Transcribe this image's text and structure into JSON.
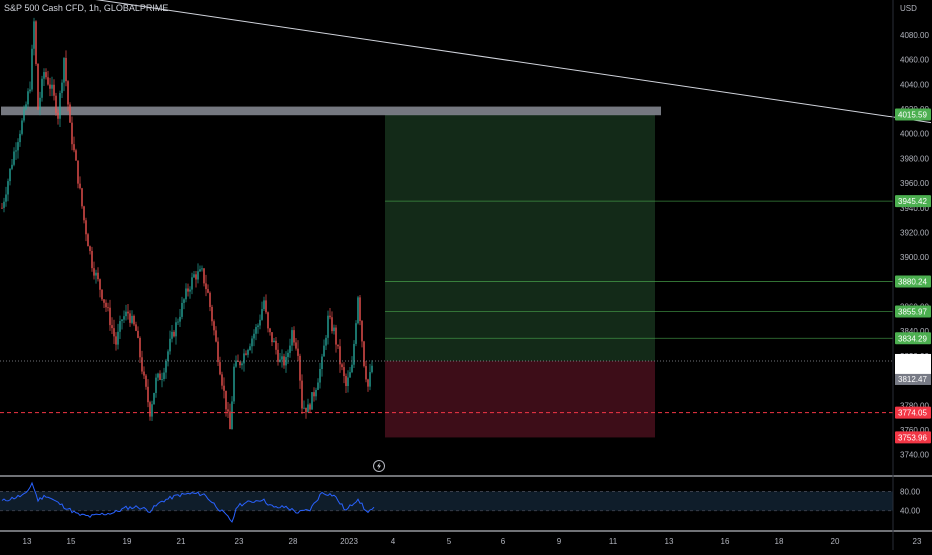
{
  "header": {
    "symbol_line": "S&P 500 Cash CFD, 1h, GLOBALPRIME"
  },
  "price_axis": {
    "currency": "USD",
    "min": 3730,
    "max": 4097,
    "ticks": [
      4080,
      4060,
      4040,
      4020,
      4000,
      3980,
      3960,
      3940,
      3920,
      3900,
      3880,
      3860,
      3840,
      3820,
      3780,
      3760,
      3740
    ],
    "tick_labels": [
      "4080.00",
      "4060.00",
      "4040.00",
      "4020.00",
      "4000.00",
      "3980.00",
      "3960.00",
      "3940.00",
      "3920.00",
      "3900.00",
      "3880.00",
      "3860.00",
      "3840.00",
      "3820.00",
      "3780.00",
      "3760.00",
      "3740.00"
    ]
  },
  "time_axis": {
    "labels": [
      {
        "text": "13",
        "slot": 13
      },
      {
        "text": "15",
        "slot": 35
      },
      {
        "text": "19",
        "slot": 63
      },
      {
        "text": "21",
        "slot": 90
      },
      {
        "text": "23",
        "slot": 119
      },
      {
        "text": "28",
        "slot": 146
      },
      {
        "text": "2023",
        "slot": 174
      },
      {
        "text": "4",
        "slot": 196
      },
      {
        "text": "5",
        "slot": 224
      },
      {
        "text": "6",
        "slot": 251
      },
      {
        "text": "9",
        "slot": 279
      },
      {
        "text": "11",
        "slot": 306
      },
      {
        "text": "13",
        "slot": 334
      },
      {
        "text": "16",
        "slot": 362
      },
      {
        "text": "18",
        "slot": 389
      },
      {
        "text": "20",
        "slot": 417
      },
      {
        "text": "23",
        "slot": 458
      }
    ]
  },
  "chart_data": {
    "type": "candlestick",
    "title": "S&P 500 Cash CFD, 1h, GLOBALPRIME",
    "ylabel": "USD",
    "ylim": [
      3730,
      4097
    ],
    "colors": {
      "up": "#26a69a",
      "down": "#ef5350",
      "rsi": "#2962ff"
    },
    "price_path": [
      {
        "t": 0,
        "p": 3940
      },
      {
        "t": 6,
        "p": 3985
      },
      {
        "t": 11,
        "p": 4015
      },
      {
        "t": 14,
        "p": 4040
      },
      {
        "t": 16,
        "p": 4090
      },
      {
        "t": 18,
        "p": 4020
      },
      {
        "t": 21,
        "p": 4050
      },
      {
        "t": 25,
        "p": 4035
      },
      {
        "t": 28,
        "p": 4015
      },
      {
        "t": 31,
        "p": 4062
      },
      {
        "t": 34,
        "p": 4005
      },
      {
        "t": 37,
        "p": 3975
      },
      {
        "t": 41,
        "p": 3930
      },
      {
        "t": 45,
        "p": 3895
      },
      {
        "t": 49,
        "p": 3875
      },
      {
        "t": 53,
        "p": 3855
      },
      {
        "t": 57,
        "p": 3830
      },
      {
        "t": 60,
        "p": 3850
      },
      {
        "t": 63,
        "p": 3855
      },
      {
        "t": 67,
        "p": 3840
      },
      {
        "t": 71,
        "p": 3800
      },
      {
        "t": 74,
        "p": 3775
      },
      {
        "t": 77,
        "p": 3800
      },
      {
        "t": 80,
        "p": 3805
      },
      {
        "t": 84,
        "p": 3830
      },
      {
        "t": 88,
        "p": 3850
      },
      {
        "t": 92,
        "p": 3870
      },
      {
        "t": 96,
        "p": 3885
      },
      {
        "t": 100,
        "p": 3887
      },
      {
        "t": 103,
        "p": 3870
      },
      {
        "t": 106,
        "p": 3840
      },
      {
        "t": 109,
        "p": 3810
      },
      {
        "t": 112,
        "p": 3780
      },
      {
        "t": 114,
        "p": 3760
      },
      {
        "t": 116,
        "p": 3810
      },
      {
        "t": 119,
        "p": 3815
      },
      {
        "t": 122,
        "p": 3825
      },
      {
        "t": 125,
        "p": 3835
      },
      {
        "t": 128,
        "p": 3845
      },
      {
        "t": 131,
        "p": 3865
      },
      {
        "t": 133,
        "p": 3840
      },
      {
        "t": 136,
        "p": 3830
      },
      {
        "t": 139,
        "p": 3815
      },
      {
        "t": 142,
        "p": 3815
      },
      {
        "t": 145,
        "p": 3840
      },
      {
        "t": 148,
        "p": 3825
      },
      {
        "t": 150,
        "p": 3780
      },
      {
        "t": 153,
        "p": 3777
      },
      {
        "t": 156,
        "p": 3790
      },
      {
        "t": 160,
        "p": 3815
      },
      {
        "t": 163,
        "p": 3850
      },
      {
        "t": 166,
        "p": 3840
      },
      {
        "t": 169,
        "p": 3815
      },
      {
        "t": 172,
        "p": 3795
      },
      {
        "t": 175,
        "p": 3810
      },
      {
        "t": 178,
        "p": 3870
      },
      {
        "t": 181,
        "p": 3815
      },
      {
        "t": 183,
        "p": 3795
      },
      {
        "t": 185,
        "p": 3812
      }
    ],
    "rsi_path": [
      {
        "t": 0,
        "v": 60
      },
      {
        "t": 12,
        "v": 74
      },
      {
        "t": 15,
        "v": 98
      },
      {
        "t": 18,
        "v": 62
      },
      {
        "t": 22,
        "v": 72
      },
      {
        "t": 28,
        "v": 56
      },
      {
        "t": 34,
        "v": 42
      },
      {
        "t": 38,
        "v": 32
      },
      {
        "t": 44,
        "v": 28
      },
      {
        "t": 50,
        "v": 33
      },
      {
        "t": 56,
        "v": 36
      },
      {
        "t": 62,
        "v": 46
      },
      {
        "t": 68,
        "v": 48
      },
      {
        "t": 74,
        "v": 40
      },
      {
        "t": 80,
        "v": 60
      },
      {
        "t": 88,
        "v": 72
      },
      {
        "t": 95,
        "v": 76
      },
      {
        "t": 101,
        "v": 74
      },
      {
        "t": 107,
        "v": 50
      },
      {
        "t": 112,
        "v": 30
      },
      {
        "t": 115,
        "v": 18
      },
      {
        "t": 118,
        "v": 52
      },
      {
        "t": 124,
        "v": 58
      },
      {
        "t": 130,
        "v": 64
      },
      {
        "t": 136,
        "v": 46
      },
      {
        "t": 142,
        "v": 48
      },
      {
        "t": 148,
        "v": 36
      },
      {
        "t": 154,
        "v": 42
      },
      {
        "t": 160,
        "v": 78
      },
      {
        "t": 166,
        "v": 72
      },
      {
        "t": 172,
        "v": 40
      },
      {
        "t": 178,
        "v": 66
      },
      {
        "t": 182,
        "v": 38
      },
      {
        "t": 186,
        "v": 44
      }
    ],
    "rsi_levels": [
      80,
      40
    ],
    "rsi_range": [
      0,
      110
    ],
    "rsi_tick_labels": [
      "80.00",
      "40.00"
    ]
  },
  "drawings": {
    "trendline": {
      "from": {
        "t": 42,
        "p": 4110
      },
      "to": {
        "t": 465,
        "p": 4009
      }
    },
    "resistance_zone": {
      "t_start": 0,
      "t_end": 330,
      "p_top": 4022,
      "p_bottom": 4015
    },
    "position": {
      "t_start": 192,
      "t_end": 327,
      "entry": 3815.9,
      "target": 4015.59,
      "stop": 3753.96,
      "profit_color": "#132a18",
      "loss_color": "#3d0d18"
    },
    "tp_levels": [
      {
        "price": 3945.42,
        "label": "3945.42"
      },
      {
        "price": 3880.24,
        "label": "3880.24"
      },
      {
        "price": 3855.97,
        "label": "3855.97"
      },
      {
        "price": 3834.29,
        "label": "3834.29"
      }
    ],
    "support_dashed": {
      "price": 3774.05
    }
  },
  "price_badges": {
    "target": {
      "price": 4015.59,
      "label": "4015.59",
      "color": "#4caf50"
    },
    "current": {
      "price": 3815.9,
      "label": "3815.90",
      "countdown": "11:15",
      "color": "#ffffff"
    },
    "pending": {
      "price": 3812.47,
      "label": "3812.47",
      "color": "#787b86"
    },
    "support": {
      "price": 3774.05,
      "label": "3774.05",
      "color": "#f23645"
    },
    "stop": {
      "price": 3753.96,
      "label": "3753.96",
      "color": "#f23645"
    }
  }
}
